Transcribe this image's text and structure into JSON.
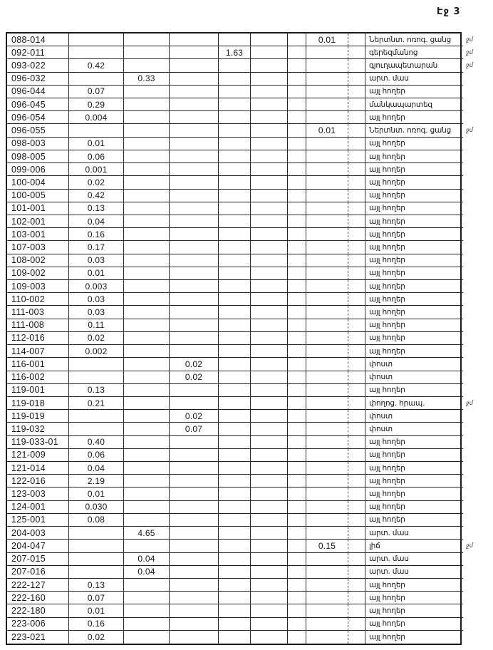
{
  "page": {
    "page_label": "Էջ 3"
  },
  "table": {
    "value_column_keys": [
      "c1",
      "c2",
      "c3",
      "c4",
      "c5",
      "c6",
      "c7",
      "c8"
    ],
    "rows": [
      {
        "code": "088-014",
        "values": {
          "c7": "0.01"
        },
        "label": "Ներտնտ. ոռոգ. ցանց",
        "note": "ջմ"
      },
      {
        "code": "092-011",
        "values": {
          "c4": "1.63"
        },
        "label": "գերեզմանոց",
        "note": "ջմ"
      },
      {
        "code": "093-022",
        "values": {
          "c1": "0.42"
        },
        "label": "գյուղապետարան",
        "note": "ջմ"
      },
      {
        "code": "096-032",
        "values": {
          "c2": "0.33"
        },
        "label": "արտ. մաս",
        "note": ""
      },
      {
        "code": "096-044",
        "values": {
          "c1": "0.07"
        },
        "label": "այլ հողեր",
        "note": ""
      },
      {
        "code": "096-045",
        "values": {
          "c1": "0.29"
        },
        "label": "մանկապարտեզ",
        "note": ""
      },
      {
        "code": "096-054",
        "values": {
          "c1": "0.004"
        },
        "label": "այլ հողեր",
        "note": ""
      },
      {
        "code": "096-055",
        "values": {
          "c7": "0.01"
        },
        "label": "Ներտնտ. ոռոգ. ցանց",
        "note": "ջմ"
      },
      {
        "code": "098-003",
        "values": {
          "c1": "0.01"
        },
        "label": "այլ հողեր",
        "note": ""
      },
      {
        "code": "098-005",
        "values": {
          "c1": "0.06"
        },
        "label": "այլ հողեր",
        "note": ""
      },
      {
        "code": "099-006",
        "values": {
          "c1": "0.001"
        },
        "label": "այլ հողեր",
        "note": ""
      },
      {
        "code": "100-004",
        "values": {
          "c1": "0.02"
        },
        "label": "այլ հողեր",
        "note": ""
      },
      {
        "code": "100-005",
        "values": {
          "c1": "0.42"
        },
        "label": "այլ հողեր",
        "note": ""
      },
      {
        "code": "101-001",
        "values": {
          "c1": "0.13"
        },
        "label": "այլ հողեր",
        "note": ""
      },
      {
        "code": "102-001",
        "values": {
          "c1": "0.04"
        },
        "label": "այլ հողեր",
        "note": ""
      },
      {
        "code": "103-001",
        "values": {
          "c1": "0.16"
        },
        "label": "այլ հողեր",
        "note": ""
      },
      {
        "code": "107-003",
        "values": {
          "c1": "0.17"
        },
        "label": "այլ հողեր",
        "note": ""
      },
      {
        "code": "108-002",
        "values": {
          "c1": "0.03"
        },
        "label": "այլ հողեր",
        "note": ""
      },
      {
        "code": "109-002",
        "values": {
          "c1": "0.01"
        },
        "label": "այլ հողեր",
        "note": ""
      },
      {
        "code": "109-003",
        "values": {
          "c1": "0.003"
        },
        "label": "այլ հողեր",
        "note": ""
      },
      {
        "code": "110-002",
        "values": {
          "c1": "0.03"
        },
        "label": "այլ հողեր",
        "note": ""
      },
      {
        "code": "111-003",
        "values": {
          "c1": "0.03"
        },
        "label": "այլ հողեր",
        "note": ""
      },
      {
        "code": "111-008",
        "values": {
          "c1": "0.11"
        },
        "label": "այլ հողեր",
        "note": ""
      },
      {
        "code": "112-016",
        "values": {
          "c1": "0.02"
        },
        "label": "այլ հողեր",
        "note": ""
      },
      {
        "code": "114-007",
        "values": {
          "c1": "0.002"
        },
        "label": "այլ հողեր",
        "note": ""
      },
      {
        "code": "116-001",
        "values": {
          "c3": "0.02"
        },
        "label": "փոստ",
        "note": ""
      },
      {
        "code": "116-002",
        "values": {
          "c3": "0.02"
        },
        "label": "փոստ",
        "note": ""
      },
      {
        "code": "119-001",
        "values": {
          "c1": "0.13"
        },
        "label": "այլ հողեր",
        "note": ""
      },
      {
        "code": "119-018",
        "values": {
          "c1": "0.21"
        },
        "label": "փողոց. հրապ.",
        "note": "ջմ"
      },
      {
        "code": "119-019",
        "values": {
          "c3": "0.02"
        },
        "label": "փոստ",
        "note": ""
      },
      {
        "code": "119-032",
        "values": {
          "c3": "0.07"
        },
        "label": "փոստ",
        "note": ""
      },
      {
        "code": "119-033-01",
        "values": {
          "c1": "0.40"
        },
        "label": "այլ հողեր",
        "note": ""
      },
      {
        "code": "121-009",
        "values": {
          "c1": "0.06"
        },
        "label": "այլ հողեր",
        "note": ""
      },
      {
        "code": "121-014",
        "values": {
          "c1": "0.04"
        },
        "label": "այլ հողեր",
        "note": ""
      },
      {
        "code": "122-016",
        "values": {
          "c1": "2.19"
        },
        "label": "այլ հողեր",
        "note": ""
      },
      {
        "code": "123-003",
        "values": {
          "c1": "0.01"
        },
        "label": "այլ հողեր",
        "note": ""
      },
      {
        "code": "124-001",
        "values": {
          "c1": "0.030"
        },
        "label": "այլ հողեր",
        "note": ""
      },
      {
        "code": "125-001",
        "values": {
          "c1": "0.08"
        },
        "label": "այլ հողեր",
        "note": ""
      },
      {
        "code": "204-003",
        "values": {
          "c2": "4.65"
        },
        "label": "արտ. մաս",
        "note": ""
      },
      {
        "code": "204-047",
        "values": {
          "c7": "0.15"
        },
        "label": "լիճ",
        "note": "ջմ"
      },
      {
        "code": "207-015",
        "values": {
          "c2": "0.04"
        },
        "label": "արտ. մաս",
        "note": ""
      },
      {
        "code": "207-016",
        "values": {
          "c2": "0.04"
        },
        "label": "արտ. մաս",
        "note": ""
      },
      {
        "code": "222-127",
        "values": {
          "c1": "0.13"
        },
        "label": "այլ հողեր",
        "note": ""
      },
      {
        "code": "222-160",
        "values": {
          "c1": "0.07"
        },
        "label": "այլ հողեր",
        "note": ""
      },
      {
        "code": "222-180",
        "values": {
          "c1": "0.01"
        },
        "label": "այլ հողեր",
        "note": ""
      },
      {
        "code": "223-006",
        "values": {
          "c1": "0.16"
        },
        "label": "այլ հողեր",
        "note": ""
      },
      {
        "code": "223-021",
        "values": {
          "c1": "0.02"
        },
        "label": "այլ հողեր",
        "note": ""
      }
    ]
  }
}
